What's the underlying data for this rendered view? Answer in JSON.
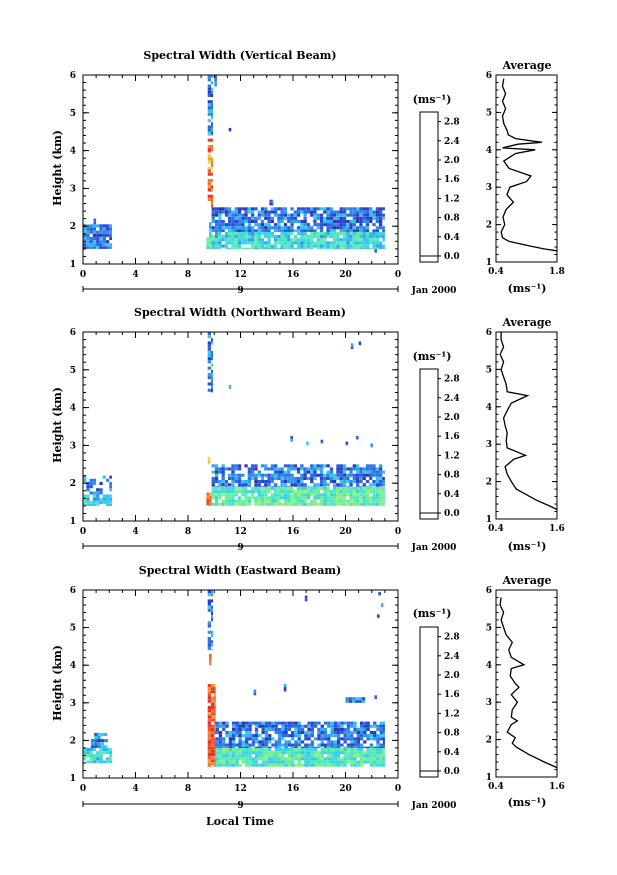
{
  "chart_data": [
    {
      "type": "heatmap",
      "title": "Spectral Width (Vertical Beam)",
      "ylabel": "Height (km)",
      "xlim": [
        0,
        24
      ],
      "ylim": [
        1,
        6
      ],
      "xticks": [
        "0",
        "4",
        "8",
        "12",
        "16",
        "20",
        "0"
      ],
      "yticks": [
        "1",
        "2",
        "3",
        "4",
        "5",
        "6"
      ],
      "date_label": "9",
      "date_suffix": "Jan 2000",
      "colorbar": {
        "unit": "(ms⁻¹)",
        "ticks": [
          "0.0",
          "0.4",
          "0.8",
          "1.2",
          "1.6",
          "2.0",
          "2.4",
          "2.8"
        ],
        "range": [
          0,
          3.0
        ]
      },
      "regions": [
        {
          "x": [
            0,
            2.2
          ],
          "y": [
            1.4,
            2.05
          ],
          "v": 0.5,
          "fill": 0.88
        },
        {
          "x": [
            0.8,
            1.0
          ],
          "y": [
            2.05,
            2.2
          ],
          "v": 0.5,
          "fill": 0.8
        },
        {
          "x": [
            9.4,
            9.8
          ],
          "y": [
            1.4,
            1.7
          ],
          "v": 1.3,
          "fill": 1
        },
        {
          "x": [
            9.6,
            9.8
          ],
          "y": [
            1.7,
            2.1
          ],
          "v": 1.0,
          "fill": 1
        },
        {
          "x": [
            9.8,
            23.0
          ],
          "y": [
            1.4,
            1.85
          ],
          "v": 1.05,
          "fill": 0.92
        },
        {
          "x": [
            9.8,
            23.0
          ],
          "y": [
            1.85,
            2.5
          ],
          "v": 0.5,
          "fill": 0.82
        },
        {
          "x": [
            14.2,
            14.5
          ],
          "y": [
            2.55,
            2.7
          ],
          "v": 0.5,
          "fill": 1
        },
        {
          "x": [
            9.5,
            9.9
          ],
          "y": [
            2.5,
            3.5
          ],
          "v": 2.85,
          "fill": 0.8
        },
        {
          "x": [
            9.5,
            9.9
          ],
          "y": [
            3.5,
            3.9
          ],
          "v": 2.3,
          "fill": 0.8
        },
        {
          "x": [
            9.5,
            9.9
          ],
          "y": [
            3.95,
            4.4
          ],
          "v": 2.8,
          "fill": 0.75
        },
        {
          "x": [
            9.5,
            9.9
          ],
          "y": [
            4.4,
            6.0
          ],
          "v": 0.55,
          "fill": 0.75
        },
        {
          "x": [
            10.0,
            10.2
          ],
          "y": [
            5.7,
            6.0
          ],
          "v": 0.55,
          "fill": 1
        },
        {
          "x": [
            11.1,
            11.3
          ],
          "y": [
            4.5,
            4.6
          ],
          "v": 0.5,
          "fill": 1
        },
        {
          "x": [
            22.2,
            22.4
          ],
          "y": [
            1.3,
            1.4
          ],
          "v": 0.5,
          "fill": 1
        }
      ],
      "average": {
        "title": "Average",
        "xlabel": "(ms⁻¹)",
        "xlim": [
          0.4,
          1.8
        ],
        "xticks": [
          "0.4",
          "1.8"
        ],
        "yticks": [
          "1",
          "2",
          "3",
          "4",
          "5",
          "6"
        ],
        "height": [
          1.3,
          1.35,
          1.45,
          1.55,
          1.65,
          1.8,
          2.0,
          2.2,
          2.4,
          2.6,
          2.8,
          3.0,
          3.15,
          3.3,
          3.5,
          3.7,
          3.9,
          4.0,
          4.05,
          4.15,
          4.2,
          4.3,
          4.4,
          4.5,
          4.7,
          4.9,
          5.1,
          5.3,
          5.5,
          5.7,
          5.9
        ],
        "width": [
          1.8,
          1.5,
          1.1,
          0.7,
          0.55,
          0.52,
          0.6,
          0.56,
          0.63,
          0.8,
          0.65,
          0.72,
          1.1,
          1.2,
          0.7,
          0.58,
          0.85,
          1.3,
          0.55,
          0.9,
          1.45,
          0.85,
          0.68,
          0.66,
          0.58,
          0.55,
          0.62,
          0.55,
          0.62,
          0.55,
          0.58
        ]
      }
    },
    {
      "type": "heatmap",
      "title": "Spectral Width (Northward Beam)",
      "ylabel": "Height (km)",
      "xlim": [
        0,
        24
      ],
      "ylim": [
        1,
        6
      ],
      "xticks": [
        "0",
        "4",
        "8",
        "12",
        "16",
        "20",
        "0"
      ],
      "yticks": [
        "1",
        "2",
        "3",
        "4",
        "5",
        "6"
      ],
      "date_label": "9",
      "date_suffix": "Jan 2000",
      "colorbar": {
        "unit": "(ms⁻¹)",
        "ticks": [
          "0.0",
          "0.4",
          "0.8",
          "1.2",
          "1.6",
          "2.0",
          "2.4",
          "2.8"
        ],
        "range": [
          0,
          3.0
        ]
      },
      "regions": [
        {
          "x": [
            0,
            2.2
          ],
          "y": [
            1.4,
            1.7
          ],
          "v": 1.0,
          "fill": 0.88
        },
        {
          "x": [
            0,
            2.2
          ],
          "y": [
            1.7,
            2.2
          ],
          "v": 0.5,
          "fill": 0.55
        },
        {
          "x": [
            9.4,
            9.8
          ],
          "y": [
            1.4,
            1.75
          ],
          "v": 2.7,
          "fill": 1
        },
        {
          "x": [
            9.8,
            23.0
          ],
          "y": [
            1.4,
            1.9
          ],
          "v": 1.3,
          "fill": 0.93
        },
        {
          "x": [
            9.8,
            23.0
          ],
          "y": [
            1.9,
            2.5
          ],
          "v": 0.5,
          "fill": 0.78
        },
        {
          "x": [
            9.5,
            9.7
          ],
          "y": [
            2.5,
            2.7
          ],
          "v": 2.2,
          "fill": 1
        },
        {
          "x": [
            9.5,
            9.9
          ],
          "y": [
            4.4,
            6.0
          ],
          "v": 0.55,
          "fill": 0.78
        },
        {
          "x": [
            15.8,
            16.0
          ],
          "y": [
            3.1,
            3.25
          ],
          "v": 0.5,
          "fill": 1
        },
        {
          "x": [
            17.0,
            17.2
          ],
          "y": [
            3.0,
            3.1
          ],
          "v": 0.5,
          "fill": 1
        },
        {
          "x": [
            18.1,
            18.3
          ],
          "y": [
            3.05,
            3.15
          ],
          "v": 0.5,
          "fill": 1
        },
        {
          "x": [
            20.0,
            20.2
          ],
          "y": [
            3.0,
            3.1
          ],
          "v": 0.5,
          "fill": 1
        },
        {
          "x": [
            20.8,
            21.0
          ],
          "y": [
            3.15,
            3.25
          ],
          "v": 0.5,
          "fill": 1
        },
        {
          "x": [
            21.9,
            22.1
          ],
          "y": [
            2.95,
            3.05
          ],
          "v": 0.5,
          "fill": 1
        },
        {
          "x": [
            20.4,
            20.6
          ],
          "y": [
            5.55,
            5.7
          ],
          "v": 0.5,
          "fill": 1
        },
        {
          "x": [
            21.0,
            21.2
          ],
          "y": [
            5.65,
            5.75
          ],
          "v": 0.5,
          "fill": 1
        },
        {
          "x": [
            11.1,
            11.3
          ],
          "y": [
            4.5,
            4.6
          ],
          "v": 0.5,
          "fill": 1
        }
      ],
      "average": {
        "title": "Average",
        "xlabel": "(ms⁻¹)",
        "xlim": [
          0.4,
          1.6
        ],
        "xticks": [
          "0.4",
          "1.6"
        ],
        "yticks": [
          "1",
          "2",
          "3",
          "4",
          "5",
          "6"
        ],
        "height": [
          1.25,
          1.35,
          1.5,
          1.65,
          1.8,
          2.0,
          2.2,
          2.4,
          2.6,
          2.7,
          2.9,
          3.1,
          3.3,
          3.5,
          3.7,
          3.9,
          4.1,
          4.3,
          4.4,
          4.6,
          4.8,
          5.0,
          5.2,
          5.4,
          5.6,
          5.8,
          6.0
        ],
        "width": [
          1.6,
          1.45,
          1.2,
          1.0,
          0.8,
          0.7,
          0.62,
          0.58,
          0.75,
          0.98,
          0.62,
          0.6,
          0.62,
          0.58,
          0.55,
          0.62,
          0.7,
          1.02,
          0.62,
          0.6,
          0.55,
          0.5,
          0.55,
          0.48,
          0.55,
          0.5,
          0.5
        ]
      }
    },
    {
      "type": "heatmap",
      "title": "Spectral Width (Eastward Beam)",
      "ylabel": "Height (km)",
      "xlabel": "Local Time",
      "xlim": [
        0,
        24
      ],
      "ylim": [
        1,
        6
      ],
      "xticks": [
        "0",
        "4",
        "8",
        "12",
        "16",
        "20",
        "0"
      ],
      "yticks": [
        "1",
        "2",
        "3",
        "4",
        "5",
        "6"
      ],
      "date_label": "9",
      "date_suffix": "Jan 2000",
      "colorbar": {
        "unit": "(ms⁻¹)",
        "ticks": [
          "0.0",
          "0.4",
          "0.8",
          "1.2",
          "1.6",
          "2.0",
          "2.4",
          "2.8"
        ],
        "range": [
          0,
          3.0
        ]
      },
      "regions": [
        {
          "x": [
            0,
            2.2
          ],
          "y": [
            1.4,
            1.8
          ],
          "v": 1.05,
          "fill": 0.9
        },
        {
          "x": [
            0.6,
            1.9
          ],
          "y": [
            1.8,
            2.2
          ],
          "v": 0.5,
          "fill": 0.7
        },
        {
          "x": [
            9.5,
            10.1
          ],
          "y": [
            1.3,
            3.5
          ],
          "v": 2.8,
          "fill": 0.95
        },
        {
          "x": [
            10.1,
            23.0
          ],
          "y": [
            1.3,
            1.8
          ],
          "v": 1.25,
          "fill": 0.95
        },
        {
          "x": [
            10.1,
            23.0
          ],
          "y": [
            1.8,
            2.5
          ],
          "v": 0.5,
          "fill": 0.78
        },
        {
          "x": [
            9.6,
            9.8
          ],
          "y": [
            4.0,
            4.3
          ],
          "v": 2.5,
          "fill": 1
        },
        {
          "x": [
            9.5,
            9.9
          ],
          "y": [
            4.4,
            6.0
          ],
          "v": 0.55,
          "fill": 0.75
        },
        {
          "x": [
            13.0,
            13.2
          ],
          "y": [
            3.2,
            3.35
          ],
          "v": 0.5,
          "fill": 1
        },
        {
          "x": [
            15.3,
            15.5
          ],
          "y": [
            3.3,
            3.5
          ],
          "v": 0.5,
          "fill": 1
        },
        {
          "x": [
            20.0,
            21.5
          ],
          "y": [
            3.0,
            3.15
          ],
          "v": 0.5,
          "fill": 1
        },
        {
          "x": [
            22.2,
            22.4
          ],
          "y": [
            3.1,
            3.2
          ],
          "v": 0.5,
          "fill": 1
        },
        {
          "x": [
            16.9,
            17.1
          ],
          "y": [
            5.7,
            5.85
          ],
          "v": 0.5,
          "fill": 1
        },
        {
          "x": [
            22.5,
            22.7
          ],
          "y": [
            5.85,
            5.95
          ],
          "v": 0.5,
          "fill": 1
        },
        {
          "x": [
            22.7,
            22.9
          ],
          "y": [
            5.55,
            5.65
          ],
          "v": 0.5,
          "fill": 1
        },
        {
          "x": [
            22.4,
            22.6
          ],
          "y": [
            5.25,
            5.35
          ],
          "v": 0.5,
          "fill": 1
        }
      ],
      "average": {
        "title": "Average",
        "xlabel": "(ms⁻¹)",
        "xlim": [
          0.4,
          1.6
        ],
        "xticks": [
          "0.4",
          "1.6"
        ],
        "yticks": [
          "1",
          "2",
          "3",
          "4",
          "5",
          "6"
        ],
        "height": [
          1.25,
          1.4,
          1.6,
          1.8,
          1.9,
          2.05,
          2.2,
          2.4,
          2.5,
          2.6,
          2.8,
          3.0,
          3.2,
          3.4,
          3.5,
          3.7,
          3.9,
          4.0,
          4.2,
          4.4,
          4.6,
          4.8,
          5.0,
          5.2,
          5.4,
          5.6,
          5.8
        ],
        "width": [
          1.6,
          1.35,
          1.05,
          0.8,
          0.72,
          0.78,
          0.62,
          0.7,
          0.82,
          0.7,
          0.72,
          0.82,
          0.7,
          0.85,
          0.78,
          0.68,
          0.7,
          0.95,
          0.7,
          0.65,
          0.72,
          0.6,
          0.55,
          0.5,
          0.55,
          0.48,
          0.5
        ]
      }
    }
  ]
}
